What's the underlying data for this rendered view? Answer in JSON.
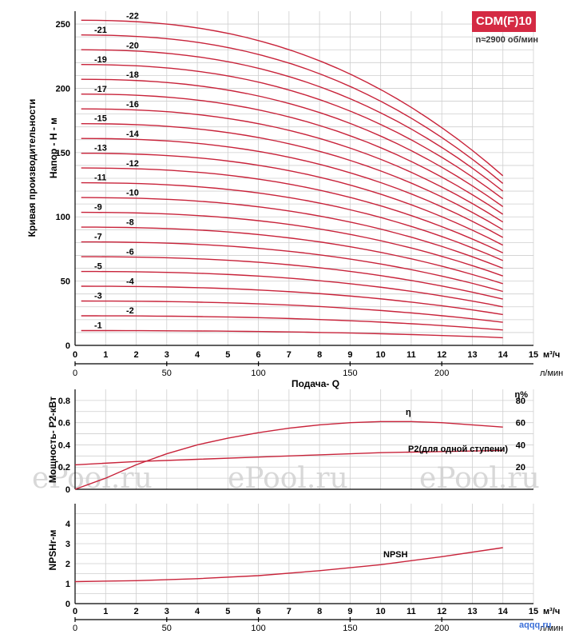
{
  "badge": {
    "model": "CDM(F)10",
    "speed": "n≈2900 об/мин",
    "color": "#d42a43"
  },
  "watermark": "ePool.ru",
  "logo": "aqqq.ru",
  "chart_data": [
    {
      "type": "line",
      "title": "Кривая производительности",
      "ylabel": "Напор - Н - м",
      "xlabel": "Подача- Q",
      "x_units_top": "м³/ч",
      "x_units_bottom": "л/мин",
      "xlim": [
        0,
        15
      ],
      "ylim": [
        0,
        260
      ],
      "x_ticks": [
        0,
        1,
        2,
        3,
        4,
        5,
        6,
        7,
        8,
        9,
        10,
        11,
        12,
        13,
        14,
        15
      ],
      "y_ticks": [
        0,
        50,
        100,
        150,
        200,
        250
      ],
      "x2_ticks": [
        0,
        50,
        100,
        150,
        200
      ],
      "grid": true,
      "series": [
        {
          "name": "-1",
          "h0": 11.5,
          "h14": 6
        },
        {
          "name": "-2",
          "h0": 23,
          "h14": 12
        },
        {
          "name": "-3",
          "h0": 34.5,
          "h14": 18
        },
        {
          "name": "-4",
          "h0": 46,
          "h14": 24
        },
        {
          "name": "-5",
          "h0": 57.5,
          "h14": 30
        },
        {
          "name": "-6",
          "h0": 69,
          "h14": 36
        },
        {
          "name": "-7",
          "h0": 80.5,
          "h14": 42
        },
        {
          "name": "-8",
          "h0": 92,
          "h14": 48
        },
        {
          "name": "-9",
          "h0": 103.5,
          "h14": 54
        },
        {
          "name": "-10",
          "h0": 115,
          "h14": 60
        },
        {
          "name": "-11",
          "h0": 126.5,
          "h14": 66
        },
        {
          "name": "-12",
          "h0": 138,
          "h14": 72
        },
        {
          "name": "-13",
          "h0": 149.5,
          "h14": 78
        },
        {
          "name": "-14",
          "h0": 161,
          "h14": 84
        },
        {
          "name": "-15",
          "h0": 172.5,
          "h14": 90
        },
        {
          "name": "-16",
          "h0": 184,
          "h14": 96
        },
        {
          "name": "-17",
          "h0": 195.5,
          "h14": 102
        },
        {
          "name": "-18",
          "h0": 207,
          "h14": 108
        },
        {
          "name": "-19",
          "h0": 218.5,
          "h14": 114
        },
        {
          "name": "-20",
          "h0": 230,
          "h14": 120
        },
        {
          "name": "-21",
          "h0": 241.5,
          "h14": 126
        },
        {
          "name": "-22",
          "h0": 253,
          "h14": 132
        }
      ]
    },
    {
      "type": "line",
      "ylabel": "Мощность- Р2-кВт",
      "y2label": "η%",
      "xlim": [
        0,
        15
      ],
      "ylim": [
        0,
        0.9
      ],
      "y_ticks": [
        0,
        0.2,
        0.4,
        0.6,
        0.8
      ],
      "y2_ticks": [
        20,
        40,
        60,
        80
      ],
      "grid": true,
      "series": [
        {
          "name": "η",
          "x": [
            0,
            1,
            2,
            3,
            4,
            5,
            6,
            7,
            8,
            9,
            10,
            11,
            12,
            13,
            14
          ],
          "y": [
            0,
            10,
            22,
            32,
            40,
            46,
            51,
            55,
            58,
            60,
            61,
            61,
            60,
            58,
            56
          ]
        },
        {
          "name": "Р2(для одной ступени)",
          "x": [
            0,
            2,
            4,
            6,
            8,
            10,
            12,
            14
          ],
          "y": [
            0.22,
            0.25,
            0.27,
            0.29,
            0.31,
            0.33,
            0.34,
            0.35
          ]
        }
      ]
    },
    {
      "type": "line",
      "ylabel": "NPSHr-м",
      "xlim": [
        0,
        15
      ],
      "ylim": [
        0,
        5
      ],
      "y_ticks": [
        0,
        1,
        2,
        3,
        4
      ],
      "x_ticks": [
        0,
        1,
        2,
        3,
        4,
        5,
        6,
        7,
        8,
        9,
        10,
        11,
        12,
        13,
        14,
        15
      ],
      "x2_ticks": [
        0,
        50,
        100,
        150,
        200
      ],
      "x_units_top": "м³/ч",
      "x_units_bottom": "л/мин",
      "grid": true,
      "series": [
        {
          "name": "NPSH",
          "x": [
            0,
            2,
            4,
            6,
            8,
            10,
            12,
            14
          ],
          "y": [
            1.1,
            1.15,
            1.25,
            1.4,
            1.65,
            1.95,
            2.35,
            2.8
          ]
        }
      ]
    }
  ]
}
